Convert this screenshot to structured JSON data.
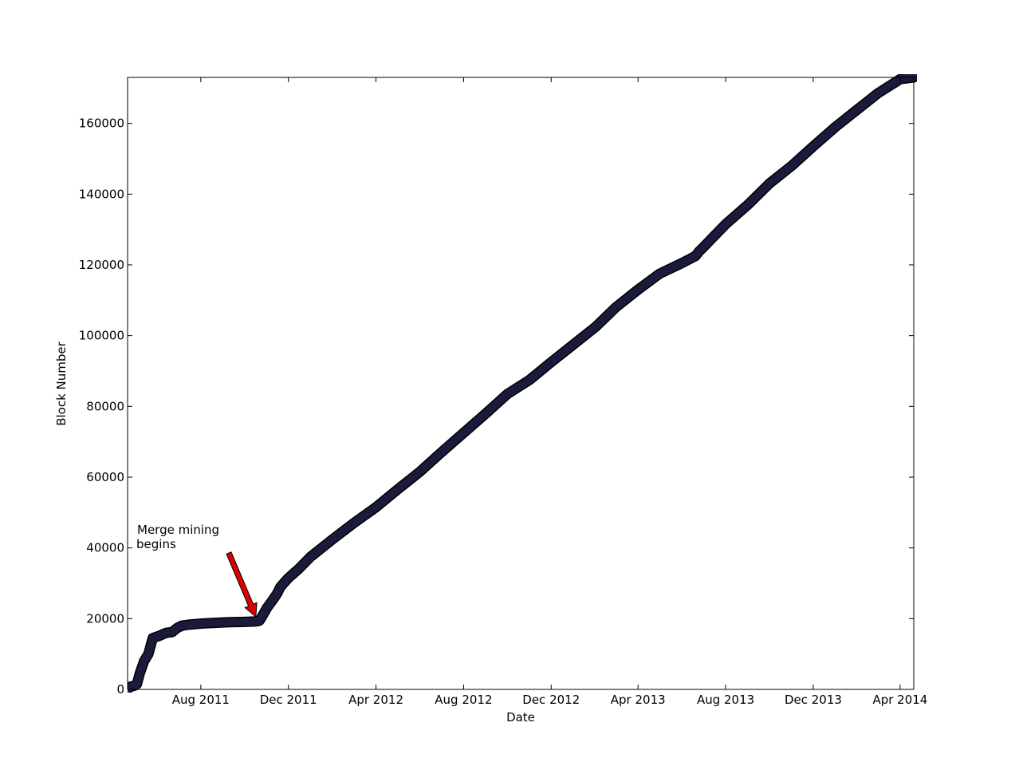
{
  "chart_data": {
    "type": "line",
    "title": "",
    "xlabel": "Date",
    "ylabel": "Block Number",
    "x_type": "date",
    "xlim": [
      "2011-04-21",
      "2014-04-20"
    ],
    "ylim": [
      0,
      173000
    ],
    "x_ticks": [
      {
        "date": "2011-08-01",
        "label": "Aug 2011"
      },
      {
        "date": "2011-12-01",
        "label": "Dec 2011"
      },
      {
        "date": "2012-04-01",
        "label": "Apr 2012"
      },
      {
        "date": "2012-08-01",
        "label": "Aug 2012"
      },
      {
        "date": "2012-12-01",
        "label": "Dec 2012"
      },
      {
        "date": "2013-04-01",
        "label": "Apr 2013"
      },
      {
        "date": "2013-08-01",
        "label": "Aug 2013"
      },
      {
        "date": "2013-12-01",
        "label": "Dec 2013"
      },
      {
        "date": "2014-04-01",
        "label": "Apr 2014"
      }
    ],
    "y_ticks": [
      0,
      20000,
      40000,
      60000,
      80000,
      100000,
      120000,
      140000,
      160000
    ],
    "grid": false,
    "legend": "none",
    "line_color": "#1a1a3a",
    "series": [
      {
        "x": [
          "2011-04-21",
          "2011-04-25",
          "2011-04-30",
          "2011-05-04",
          "2011-05-08",
          "2011-05-14",
          "2011-05-20",
          "2011-05-26",
          "2011-06-02",
          "2011-06-05",
          "2011-06-08",
          "2011-06-14",
          "2011-06-22",
          "2011-06-30",
          "2011-07-04",
          "2011-07-05",
          "2011-07-15",
          "2011-08-01",
          "2011-08-20",
          "2011-09-10",
          "2011-10-01",
          "2011-10-15",
          "2011-10-20",
          "2011-10-22",
          "2011-10-25",
          "2011-11-01",
          "2011-11-10",
          "2011-11-15",
          "2011-11-20",
          "2011-12-01",
          "2011-12-15",
          "2012-01-01",
          "2012-02-01",
          "2012-03-01",
          "2012-04-01",
          "2012-05-01",
          "2012-06-01",
          "2012-07-01",
          "2012-08-01",
          "2012-09-01",
          "2012-10-01",
          "2012-11-01",
          "2012-12-01",
          "2013-01-01",
          "2013-02-01",
          "2013-03-01",
          "2013-04-01",
          "2013-05-01",
          "2013-06-01",
          "2013-06-20",
          "2013-06-25",
          "2013-07-01",
          "2013-08-01",
          "2013-09-01",
          "2013-10-01",
          "2013-11-01",
          "2013-12-01",
          "2014-01-01",
          "2014-02-01",
          "2014-03-01",
          "2014-04-01",
          "2014-04-20"
        ],
        "y": [
          0,
          800,
          1000,
          1500,
          4500,
          8000,
          10000,
          14500,
          15000,
          15200,
          15500,
          16000,
          16200,
          17500,
          17800,
          18000,
          18300,
          18600,
          18800,
          19000,
          19100,
          19200,
          19300,
          19500,
          20500,
          23000,
          25500,
          27000,
          29000,
          31500,
          34000,
          37500,
          42500,
          47000,
          51500,
          56500,
          61500,
          67000,
          72500,
          78000,
          83500,
          87500,
          92500,
          97500,
          102500,
          108000,
          113000,
          117500,
          120500,
          122500,
          123800,
          125000,
          131500,
          137000,
          143000,
          148000,
          153500,
          159000,
          164000,
          168500,
          172500,
          173000
        ]
      }
    ],
    "annotations": [
      {
        "text_lines": [
          "Merge mining",
          "begins"
        ],
        "target": {
          "date": "2011-10-20",
          "value": 20500
        },
        "arrow_color": "#dd0000"
      }
    ]
  }
}
